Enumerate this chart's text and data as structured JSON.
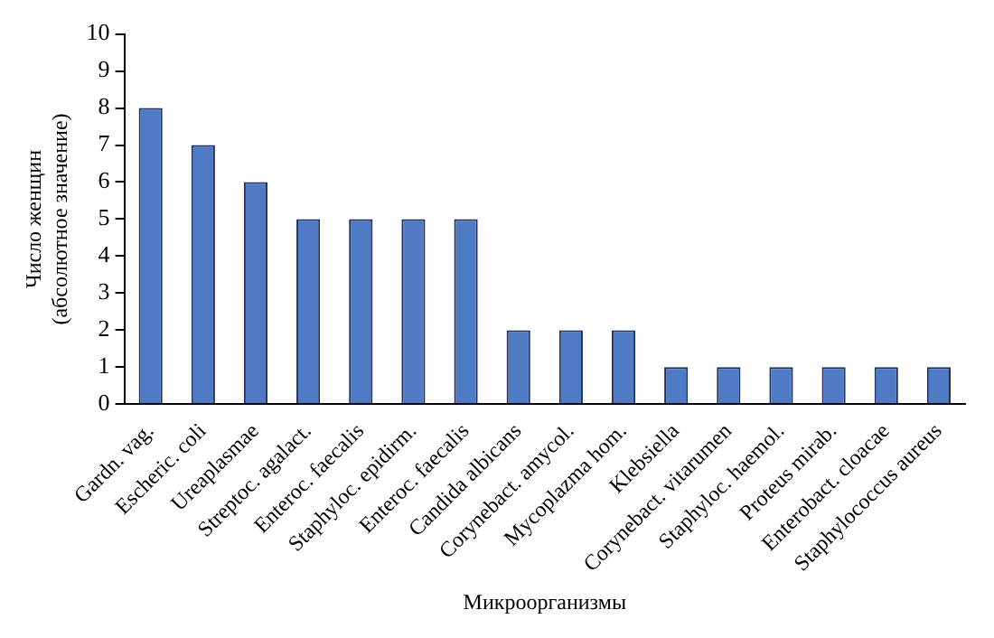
{
  "chart_data": {
    "type": "bar",
    "xlabel": "Микроорганизмы",
    "ylabel": "Число женщин (абсолютное значение)",
    "categories": [
      "Gardn. vag.",
      "Escheric. coli",
      "Ureaplasmae",
      "Streptoc. agalact.",
      "Enteroc. faecalis",
      "Staphyloc. epidirm.",
      "Enteroc. faecalis",
      "Candida albicans",
      "Corynebact. amycol.",
      "Mycoplazma hom.",
      "Klebsiella",
      "Corynebact. vitarumen",
      "Staphyloc. haemol.",
      "Proteus mirab.",
      "Enterobact. cloacae",
      "Staphylococcus aureus"
    ],
    "series": [
      {
        "color": "#4f7bc4",
        "values": [
          8,
          7,
          6,
          5,
          5,
          5,
          5,
          2,
          2,
          2,
          1,
          1,
          1,
          1,
          1,
          1
        ]
      }
    ],
    "ylim": [
      0,
      10
    ],
    "yticks": [
      0,
      1,
      2,
      3,
      4,
      5,
      6,
      7,
      8,
      9,
      10
    ],
    "grid": false,
    "legend": false
  }
}
